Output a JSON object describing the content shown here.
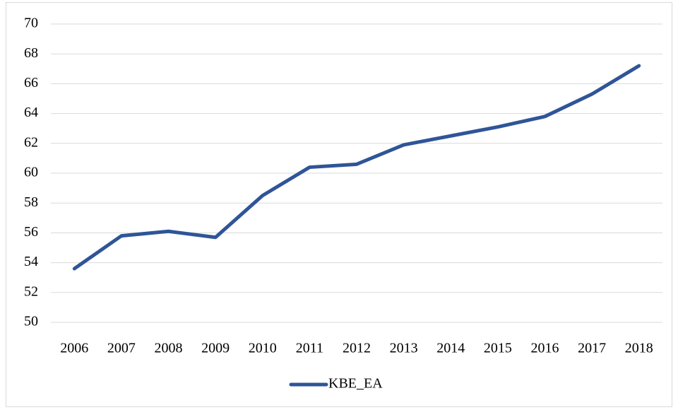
{
  "chart_data": {
    "type": "line",
    "categories": [
      "2006",
      "2007",
      "2008",
      "2009",
      "2010",
      "2011",
      "2012",
      "2013",
      "2014",
      "2015",
      "2016",
      "2017",
      "2018"
    ],
    "series": [
      {
        "name": "KBE_EA",
        "color": "#2f5597",
        "values": [
          53.6,
          55.8,
          56.1,
          55.7,
          58.5,
          60.4,
          60.6,
          61.9,
          62.5,
          63.1,
          63.8,
          65.3,
          67.2
        ]
      }
    ],
    "ylim": [
      50,
      70
    ],
    "yticks": [
      50,
      52,
      54,
      56,
      58,
      60,
      62,
      64,
      66,
      68,
      70
    ],
    "grid": true,
    "legend": "bottom"
  }
}
